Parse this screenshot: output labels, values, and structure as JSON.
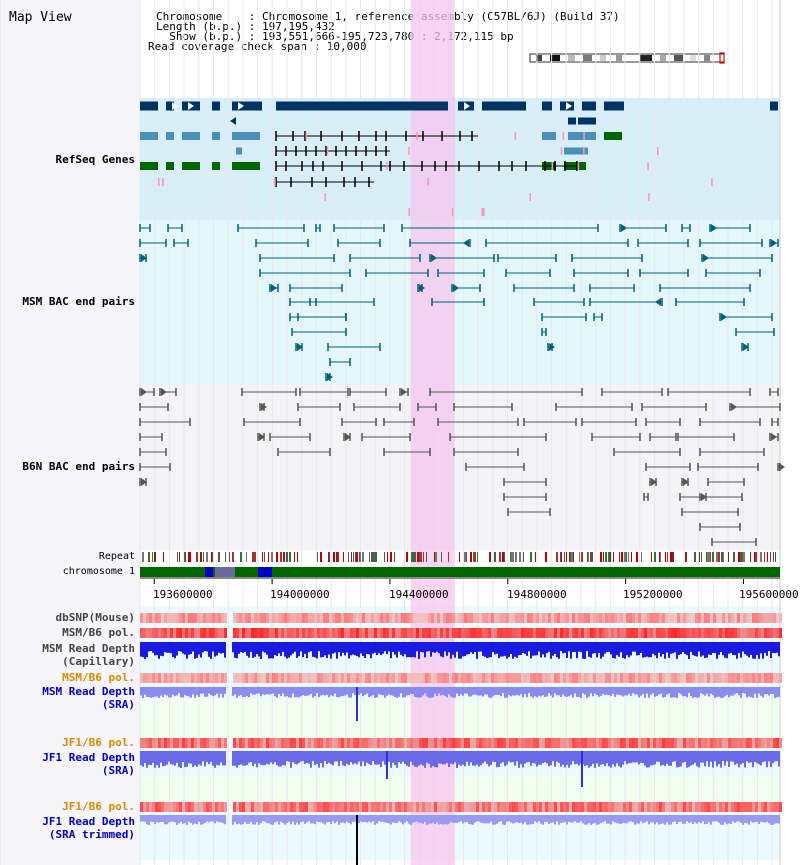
{
  "header": {
    "title": "Map View",
    "chromosome_line": "Chromosome    : Chromosome 1, reference assembly (C57BL/6J) (Build 37)",
    "length_line": "Length (b.p.) : 197,195,432",
    "show_line": "  Show (b.p.) : 193,551,666-195,723,780 : 2,172,115 bp",
    "coverage_line": "Read coverage check span : 10,000"
  },
  "tracks": {
    "refseq": {
      "label": "RefSeq Genes",
      "color": "#0000aa"
    },
    "msm_bac": {
      "label": "MSM BAC end pairs",
      "color": "#006e8c"
    },
    "b6n_bac": {
      "label": "B6N BAC end pairs",
      "color": "#333333"
    },
    "repeat": {
      "label": "Repeat"
    },
    "chromosome": {
      "label": "chromosome 1"
    },
    "dbsnp": {
      "label": "dbSNP(Mouse)"
    },
    "msm_b6_pol_cap": {
      "label": "MSM/B6 pol."
    },
    "msm_depth_cap": {
      "label_1": "MSM Read Depth",
      "label_2": "(Capillary)"
    },
    "msm_b6_pol_sra": {
      "label": "MSM/B6 pol.",
      "color": "#e08a00"
    },
    "msm_depth_sra": {
      "label_1": "MSM Read Depth",
      "label_2": "(SRA)",
      "color": "#0000cc"
    },
    "jf1_b6_pol": {
      "label": "JF1/B6 pol.",
      "color": "#e08a00"
    },
    "jf1_depth": {
      "label_1": "JF1 Read Depth",
      "label_2": "(SRA)",
      "color": "#0000cc"
    },
    "jf1_b6_pol_2": {
      "label": "JF1/B6 pol.",
      "color": "#e08a00"
    },
    "jf1_depth_trim": {
      "label_1": "JF1 Read Depth",
      "label_2": "(SRA trimmed)",
      "color": "#0000cc"
    }
  },
  "axis": {
    "ticks": [
      "193600000",
      "194000000",
      "194400000",
      "194800000",
      "195200000",
      "195600000"
    ],
    "tick_values": [
      193600000,
      194000000,
      194400000,
      194800000,
      195200000,
      195600000
    ],
    "view_start": 193551666,
    "view_end": 195723780
  },
  "highlight": {
    "start": 194470000,
    "end": 194620000
  }
}
